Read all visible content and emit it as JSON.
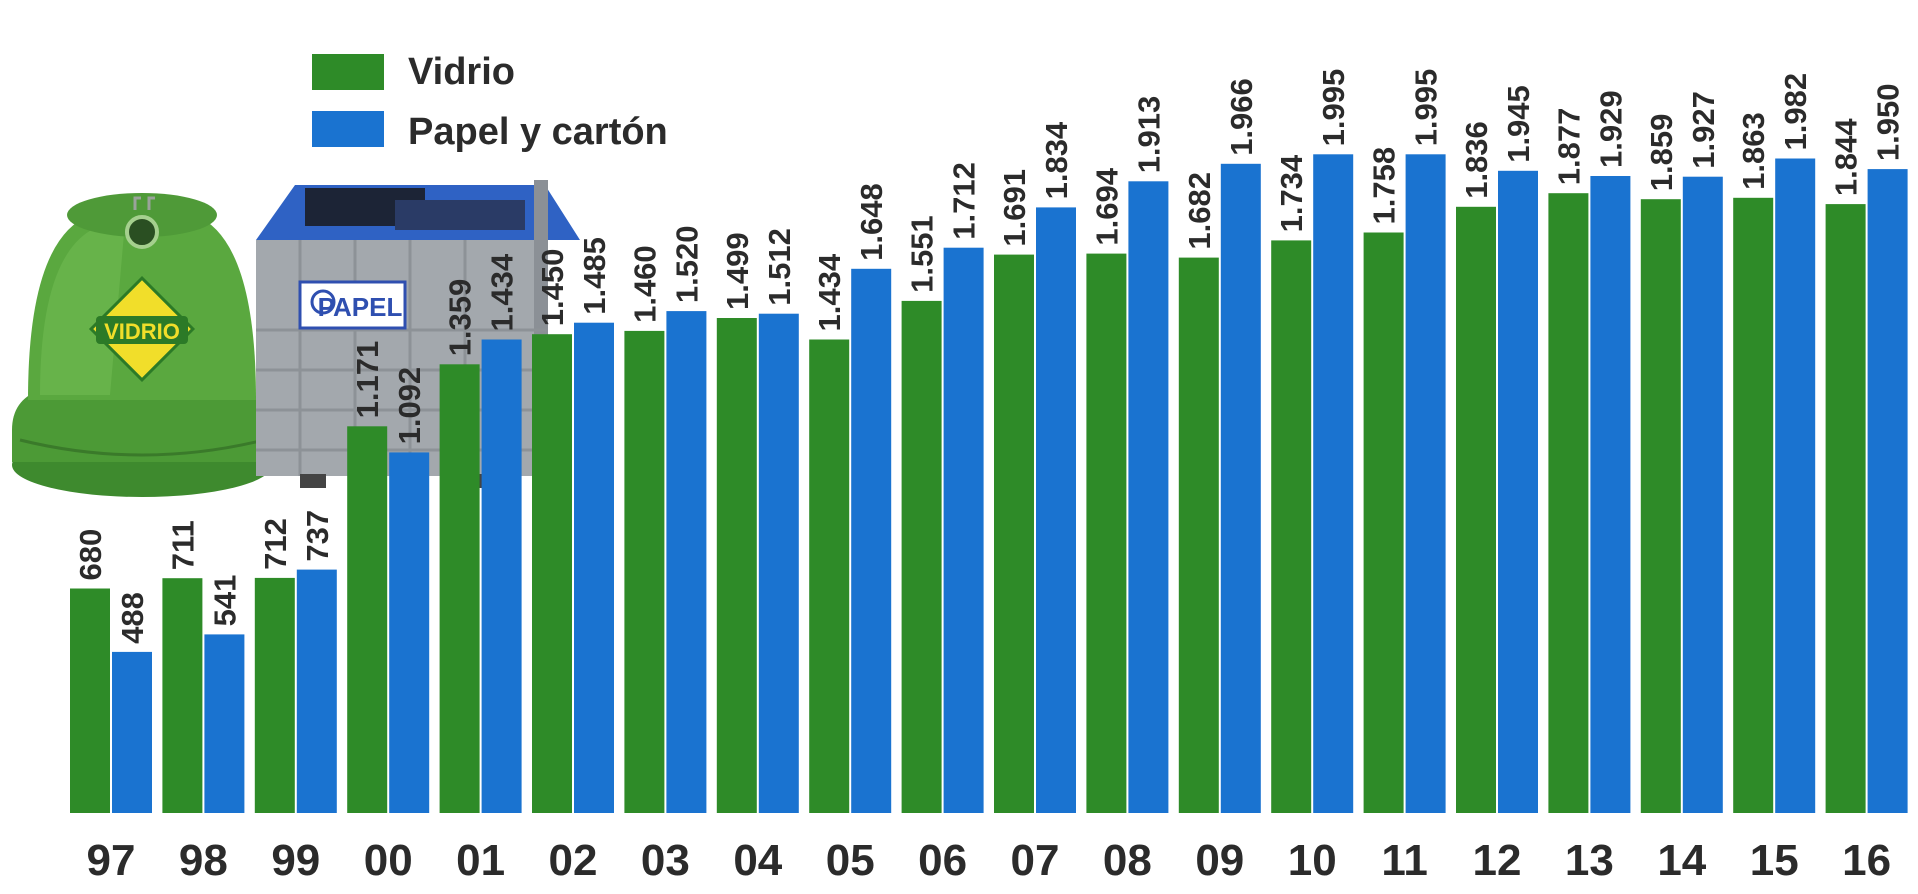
{
  "legend": {
    "items": [
      {
        "label": "Vidrio",
        "color": "#2e8b28"
      },
      {
        "label": "Papel y cartón",
        "color": "#1a73d0"
      }
    ]
  },
  "illustrations": {
    "glass_bin": {
      "label": "VIDRIO",
      "icon": "glass-recycling-bin-icon"
    },
    "paper_bin": {
      "label": "PAPEL",
      "icon": "paper-recycling-container-icon"
    }
  },
  "chart_data": {
    "type": "bar",
    "categories": [
      "97",
      "98",
      "99",
      "00",
      "01",
      "02",
      "03",
      "04",
      "05",
      "06",
      "07",
      "08",
      "09",
      "10",
      "11",
      "12",
      "13",
      "14",
      "15",
      "16"
    ],
    "series": [
      {
        "name": "Vidrio",
        "color": "#2e8b28",
        "values": [
          680,
          711,
          712,
          1171,
          1359,
          1450,
          1460,
          1499,
          1434,
          1551,
          1691,
          1694,
          1682,
          1734,
          1758,
          1836,
          1877,
          1859,
          1863,
          1844
        ],
        "labels": [
          "680",
          "711",
          "712",
          "1.171",
          "1.359",
          "1.450",
          "1.460",
          "1.499",
          "1.434",
          "1.551",
          "1.691",
          "1.694",
          "1.682",
          "1.734",
          "1.758",
          "1.836",
          "1.877",
          "1.859",
          "1.863",
          "1.844"
        ]
      },
      {
        "name": "Papel y cartón",
        "color": "#1a73d0",
        "values": [
          488,
          541,
          737,
          1092,
          1434,
          1485,
          1520,
          1512,
          1648,
          1712,
          1834,
          1913,
          1966,
          1995,
          1995,
          1945,
          1929,
          1927,
          1982,
          1950
        ],
        "labels": [
          "488",
          "541",
          "737",
          "1.092",
          "1.434",
          "1.485",
          "1.520",
          "1.512",
          "1.648",
          "1.712",
          "1.834",
          "1.913",
          "1.966",
          "1.995",
          "1.995",
          "1.945",
          "1.929",
          "1.927",
          "1.982",
          "1.950"
        ]
      }
    ],
    "ylim": [
      0,
      2000
    ],
    "grid": false,
    "legend_position": "top-left",
    "title": "",
    "xlabel": "",
    "ylabel": ""
  }
}
